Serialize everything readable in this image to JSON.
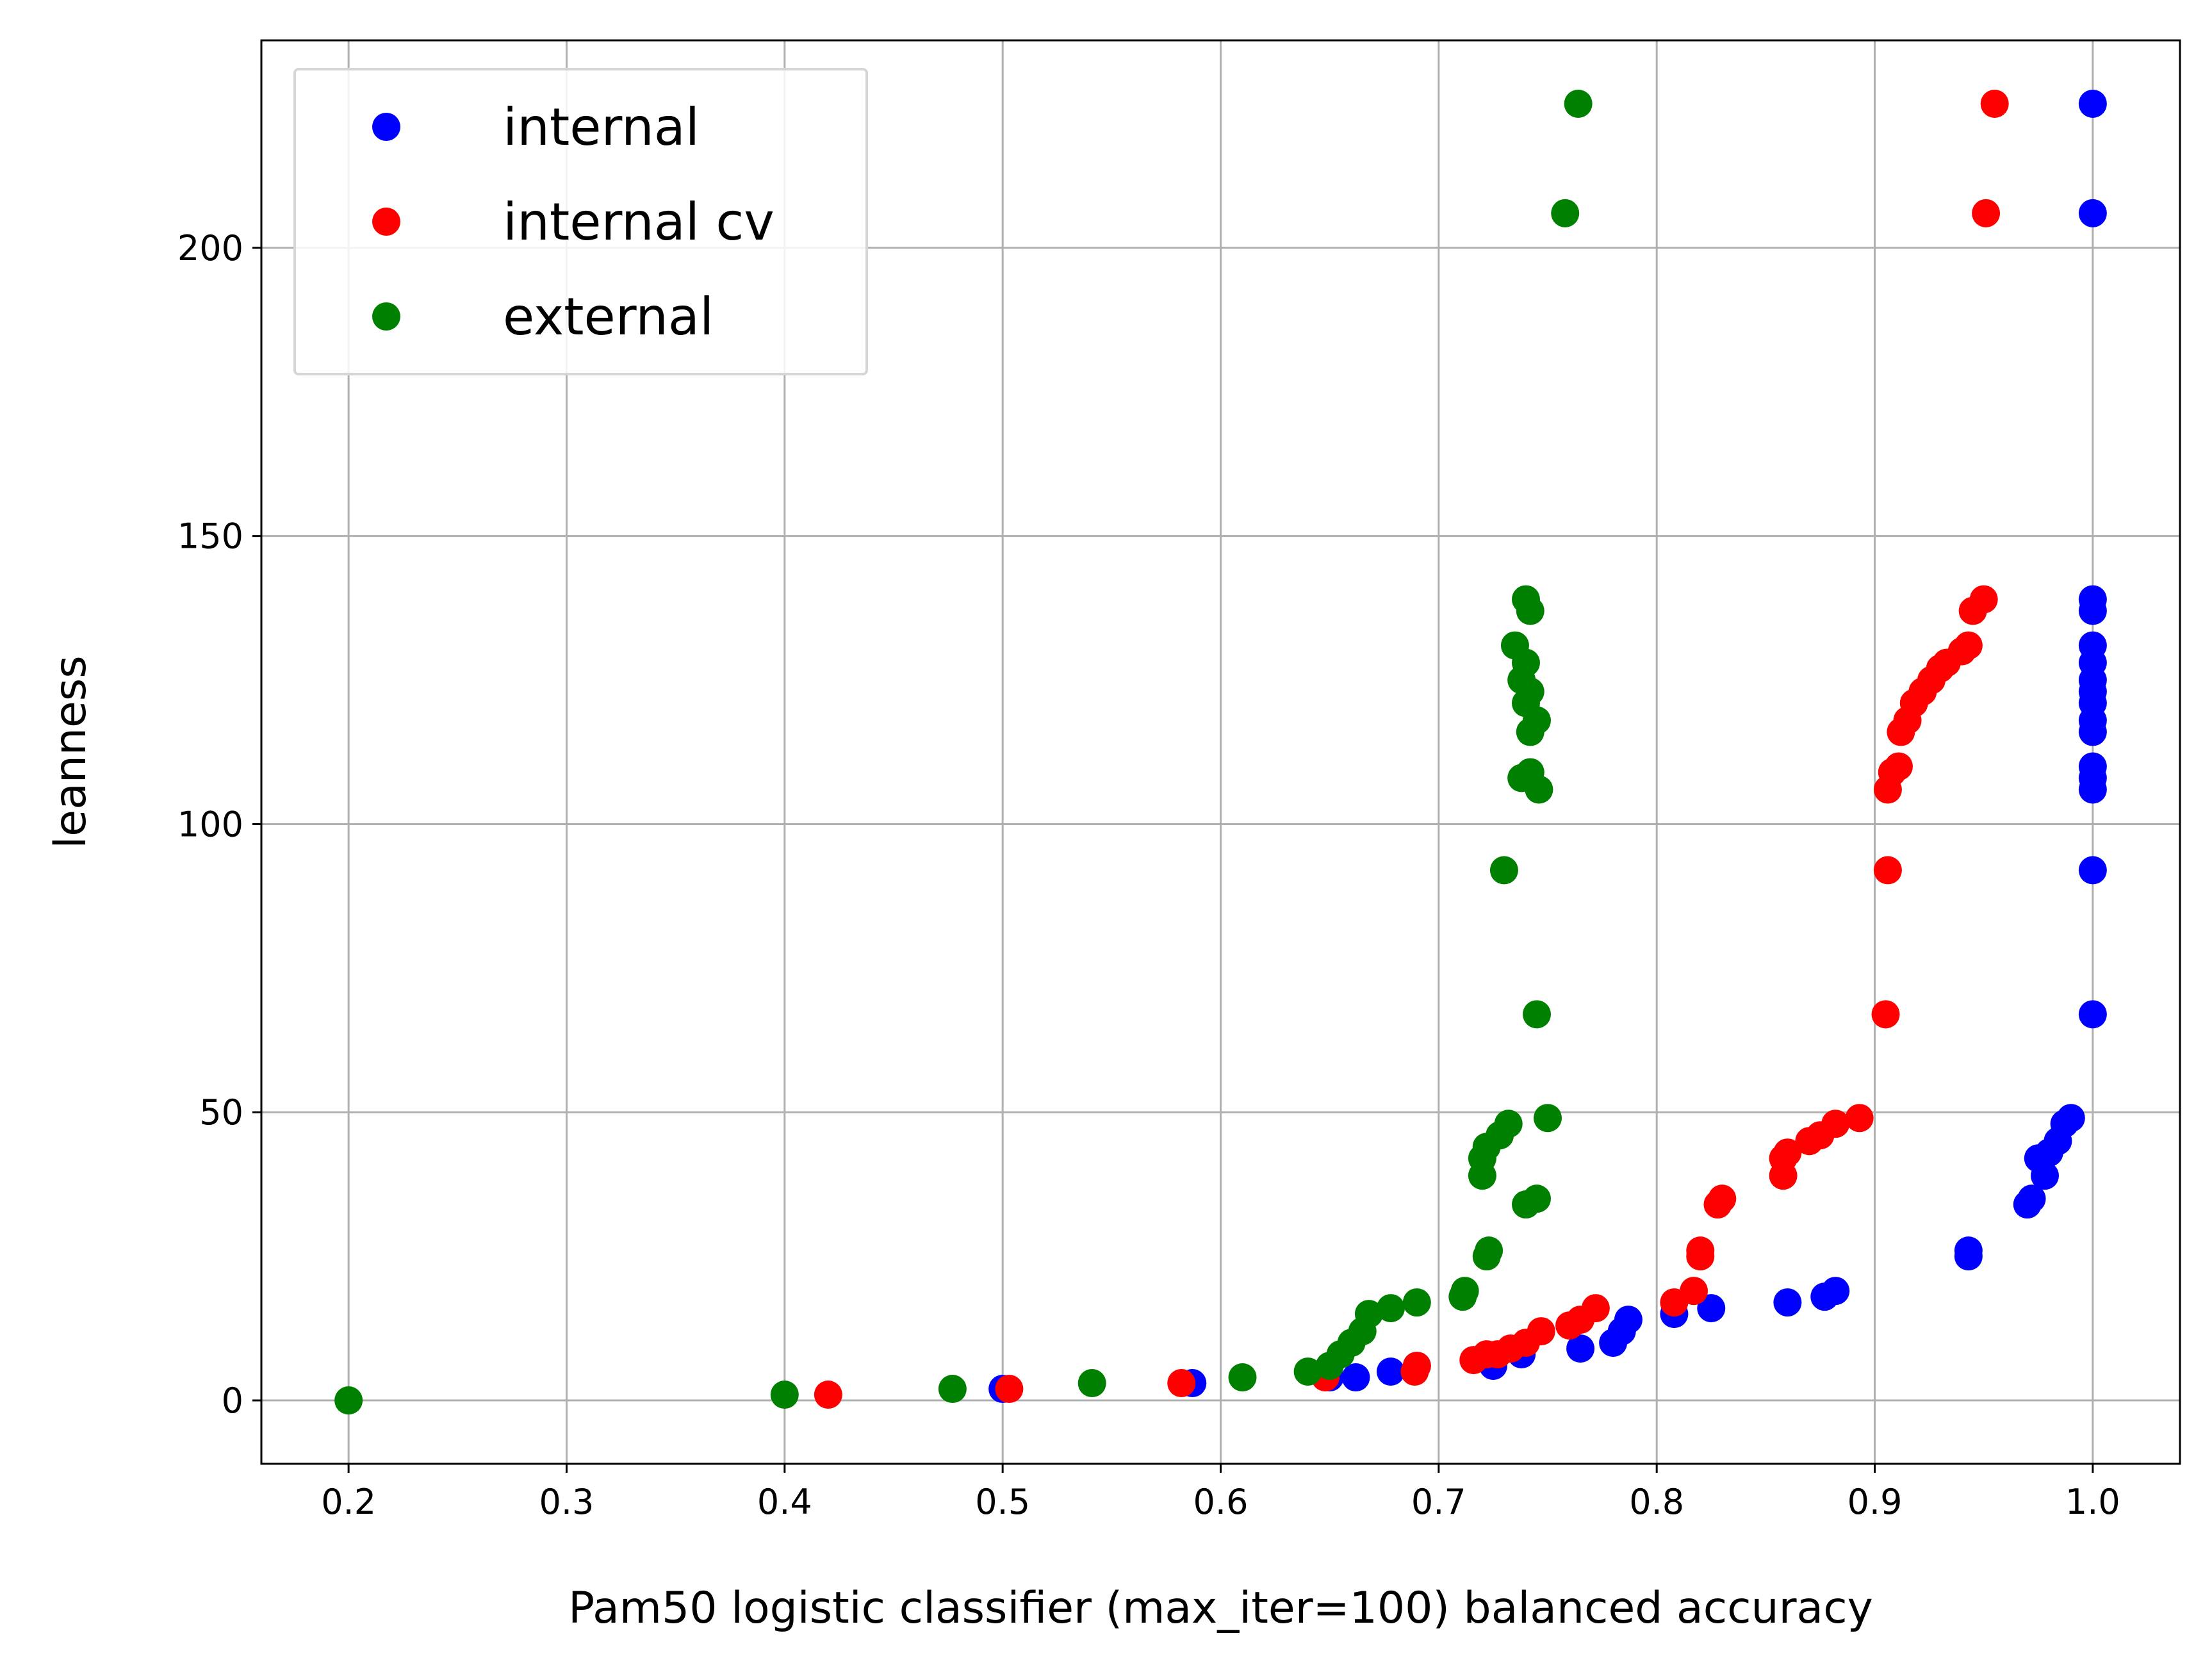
{
  "chart_data": {
    "type": "scatter",
    "title": "",
    "xlabel": "Pam50 logistic classifier (max_iter=100) balanced accuracy",
    "ylabel": "leanness",
    "xlim": [
      0.16,
      1.04
    ],
    "ylim": [
      -11,
      236
    ],
    "x_ticks": [
      0.2,
      0.3,
      0.4,
      0.5,
      0.6,
      0.7,
      0.8,
      0.9,
      1.0
    ],
    "x_tick_labels": [
      "0.2",
      "0.3",
      "0.4",
      "0.5",
      "0.6",
      "0.7",
      "0.8",
      "0.9",
      "1.0"
    ],
    "y_ticks": [
      0,
      50,
      100,
      150,
      200
    ],
    "y_tick_labels": [
      "0",
      "50",
      "100",
      "150",
      "200"
    ],
    "grid": true,
    "legend_position": "top-left",
    "series": [
      {
        "name": "internal",
        "color": "#0000ff",
        "points": [
          [
            0.5,
            2
          ],
          [
            0.587,
            3
          ],
          [
            0.65,
            4
          ],
          [
            0.662,
            4
          ],
          [
            0.678,
            5
          ],
          [
            0.69,
            6
          ],
          [
            0.725,
            6
          ],
          [
            0.738,
            8
          ],
          [
            0.765,
            9
          ],
          [
            0.78,
            10
          ],
          [
            0.784,
            12
          ],
          [
            0.787,
            14
          ],
          [
            0.808,
            15
          ],
          [
            0.825,
            16
          ],
          [
            0.86,
            17
          ],
          [
            0.877,
            18
          ],
          [
            0.882,
            19
          ],
          [
            0.943,
            25
          ],
          [
            0.943,
            26
          ],
          [
            0.97,
            34
          ],
          [
            0.972,
            35
          ],
          [
            0.978,
            39
          ],
          [
            0.975,
            42
          ],
          [
            0.98,
            43
          ],
          [
            0.984,
            45
          ],
          [
            0.987,
            48
          ],
          [
            0.99,
            49
          ],
          [
            1.0,
            67
          ],
          [
            1.0,
            92
          ],
          [
            1.0,
            106
          ],
          [
            1.0,
            108
          ],
          [
            1.0,
            110
          ],
          [
            1.0,
            116
          ],
          [
            1.0,
            118
          ],
          [
            1.0,
            121
          ],
          [
            1.0,
            123
          ],
          [
            1.0,
            125
          ],
          [
            1.0,
            128
          ],
          [
            1.0,
            131
          ],
          [
            1.0,
            137
          ],
          [
            1.0,
            139
          ],
          [
            1.0,
            206
          ],
          [
            1.0,
            225
          ]
        ]
      },
      {
        "name": "internal cv",
        "color": "#ff0000",
        "points": [
          [
            0.42,
            1
          ],
          [
            0.503,
            2
          ],
          [
            0.582,
            3
          ],
          [
            0.648,
            4
          ],
          [
            0.689,
            5
          ],
          [
            0.69,
            6
          ],
          [
            0.716,
            7
          ],
          [
            0.722,
            8
          ],
          [
            0.727,
            8
          ],
          [
            0.733,
            9
          ],
          [
            0.74,
            10
          ],
          [
            0.747,
            12
          ],
          [
            0.76,
            13
          ],
          [
            0.765,
            14
          ],
          [
            0.772,
            16
          ],
          [
            0.808,
            17
          ],
          [
            0.817,
            19
          ],
          [
            0.82,
            25
          ],
          [
            0.82,
            26
          ],
          [
            0.828,
            34
          ],
          [
            0.83,
            35
          ],
          [
            0.858,
            39
          ],
          [
            0.858,
            42
          ],
          [
            0.86,
            43
          ],
          [
            0.87,
            45
          ],
          [
            0.875,
            46
          ],
          [
            0.882,
            48
          ],
          [
            0.893,
            49
          ],
          [
            0.905,
            67
          ],
          [
            0.906,
            92
          ],
          [
            0.906,
            106
          ],
          [
            0.908,
            109
          ],
          [
            0.911,
            110
          ],
          [
            0.912,
            116
          ],
          [
            0.915,
            118
          ],
          [
            0.918,
            121
          ],
          [
            0.922,
            123
          ],
          [
            0.926,
            125
          ],
          [
            0.93,
            127
          ],
          [
            0.933,
            128
          ],
          [
            0.94,
            130
          ],
          [
            0.943,
            131
          ],
          [
            0.945,
            137
          ],
          [
            0.95,
            139
          ],
          [
            0.951,
            206
          ],
          [
            0.955,
            225
          ]
        ]
      },
      {
        "name": "external",
        "color": "#008000",
        "points": [
          [
            0.2,
            0
          ],
          [
            0.4,
            1
          ],
          [
            0.477,
            2
          ],
          [
            0.541,
            3
          ],
          [
            0.61,
            4
          ],
          [
            0.64,
            5
          ],
          [
            0.65,
            6
          ],
          [
            0.655,
            8
          ],
          [
            0.66,
            10
          ],
          [
            0.665,
            12
          ],
          [
            0.668,
            15
          ],
          [
            0.678,
            16
          ],
          [
            0.69,
            17
          ],
          [
            0.711,
            18
          ],
          [
            0.712,
            19
          ],
          [
            0.722,
            25
          ],
          [
            0.723,
            26
          ],
          [
            0.74,
            34
          ],
          [
            0.745,
            35
          ],
          [
            0.72,
            39
          ],
          [
            0.72,
            42
          ],
          [
            0.722,
            44
          ],
          [
            0.728,
            46
          ],
          [
            0.732,
            48
          ],
          [
            0.75,
            49
          ],
          [
            0.745,
            67
          ],
          [
            0.73,
            92
          ],
          [
            0.746,
            106
          ],
          [
            0.738,
            108
          ],
          [
            0.742,
            109
          ],
          [
            0.742,
            116
          ],
          [
            0.745,
            118
          ],
          [
            0.74,
            121
          ],
          [
            0.742,
            123
          ],
          [
            0.738,
            125
          ],
          [
            0.74,
            128
          ],
          [
            0.735,
            131
          ],
          [
            0.742,
            137
          ],
          [
            0.74,
            139
          ],
          [
            0.758,
            206
          ],
          [
            0.764,
            225
          ]
        ]
      }
    ]
  }
}
